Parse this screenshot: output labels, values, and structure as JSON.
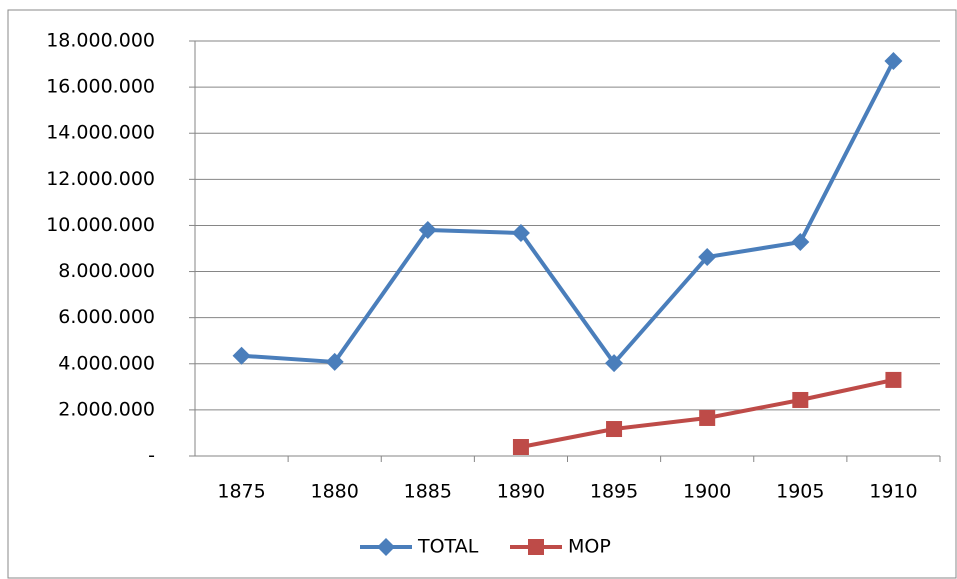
{
  "chart_data": {
    "type": "line",
    "categories": [
      "1875",
      "1880",
      "1885",
      "1890",
      "1895",
      "1900",
      "1905",
      "1910"
    ],
    "series": [
      {
        "name": "TOTAL",
        "color": "#4a7ebb",
        "marker": "diamond",
        "values": [
          4350000,
          4080000,
          9800000,
          9670000,
          4030000,
          8630000,
          9280000,
          17130000
        ]
      },
      {
        "name": "MOP",
        "color": "#be4b48",
        "marker": "square",
        "values": [
          null,
          null,
          null,
          390000,
          1170000,
          1650000,
          2430000,
          3300000
        ]
      }
    ],
    "ylim": [
      0,
      18000000
    ],
    "yticks": [
      {
        "value": 0,
        "label": "-"
      },
      {
        "value": 2000000,
        "label": "2.000.000"
      },
      {
        "value": 4000000,
        "label": "4.000.000"
      },
      {
        "value": 6000000,
        "label": "6.000.000"
      },
      {
        "value": 8000000,
        "label": "8.000.000"
      },
      {
        "value": 10000000,
        "label": "10.000.000"
      },
      {
        "value": 12000000,
        "label": "12.000.000"
      },
      {
        "value": 14000000,
        "label": "14.000.000"
      },
      {
        "value": 16000000,
        "label": "16.000.000"
      },
      {
        "value": 18000000,
        "label": "18.000.000"
      }
    ],
    "grid": true,
    "legend": "bottom"
  }
}
